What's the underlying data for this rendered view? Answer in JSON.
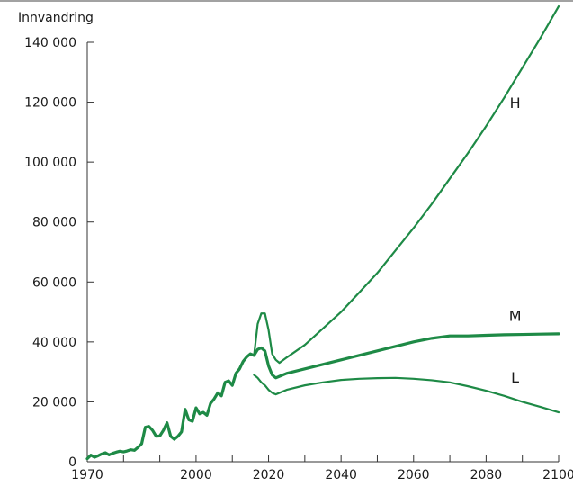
{
  "chart_data": {
    "type": "line",
    "title": "",
    "ylabel": "Innvandring",
    "xlabel": "",
    "xlim": [
      1970,
      2100
    ],
    "ylim": [
      0,
      140000
    ],
    "x_ticks": [
      1970,
      1980,
      1990,
      2000,
      2010,
      2020,
      2030,
      2040,
      2050,
      2060,
      2070,
      2080,
      2090,
      2100
    ],
    "x_tick_labels": [
      "1970",
      "2000",
      "2020",
      "2040",
      "2060",
      "2080",
      "2100"
    ],
    "x_tick_label_values": [
      1970,
      2000,
      2020,
      2040,
      2060,
      2080,
      2100
    ],
    "y_ticks": [
      0,
      20000,
      40000,
      60000,
      80000,
      100000,
      120000,
      140000
    ],
    "y_tick_labels": [
      "0",
      "20 000",
      "40 000",
      "60 000",
      "80 000",
      "100 000",
      "120 000",
      "140 000"
    ],
    "grid": false,
    "color": "#1e8a46",
    "historical": {
      "x": [
        1970,
        1971,
        1972,
        1973,
        1974,
        1975,
        1976,
        1977,
        1978,
        1979,
        1980,
        1981,
        1982,
        1983,
        1984,
        1985,
        1986,
        1987,
        1988,
        1989,
        1990,
        1991,
        1992,
        1993,
        1994,
        1995,
        1996,
        1997,
        1998,
        1999,
        2000,
        2001,
        2002,
        2003,
        2004,
        2005,
        2006,
        2007,
        2008,
        2009,
        2010,
        2011,
        2012,
        2013,
        2014,
        2015,
        2016
      ],
      "values": [
        1000,
        2200,
        1500,
        2000,
        2600,
        3000,
        2300,
        2800,
        3200,
        3500,
        3300,
        3600,
        4000,
        3800,
        4800,
        6000,
        11500,
        11800,
        10500,
        8500,
        8600,
        10500,
        13000,
        8500,
        7500,
        8500,
        10000,
        17500,
        14000,
        13500,
        18000,
        16000,
        16500,
        15500,
        19500,
        21000,
        23000,
        22000,
        26500,
        27000,
        25500,
        29500,
        31000,
        33500,
        35000,
        36000,
        35500
      ]
    },
    "series": [
      {
        "name": "H",
        "x": [
          2016,
          2017,
          2018,
          2019,
          2020,
          2021,
          2022,
          2023,
          2025,
          2030,
          2035,
          2040,
          2045,
          2050,
          2055,
          2060,
          2065,
          2070,
          2075,
          2080,
          2085,
          2090,
          2095,
          2100
        ],
        "values": [
          35500,
          46000,
          49500,
          49500,
          44000,
          36000,
          34000,
          33000,
          34800,
          39000,
          44500,
          50000,
          56500,
          63000,
          70500,
          78000,
          86000,
          94500,
          103000,
          112000,
          121500,
          131500,
          141500,
          152000
        ]
      },
      {
        "name": "M",
        "x": [
          2016,
          2017,
          2018,
          2019,
          2020,
          2021,
          2022,
          2023,
          2025,
          2030,
          2035,
          2040,
          2045,
          2050,
          2055,
          2060,
          2065,
          2070,
          2075,
          2080,
          2085,
          2090,
          2095,
          2100
        ],
        "values": [
          35500,
          37500,
          38000,
          37000,
          32000,
          29000,
          28000,
          28500,
          29500,
          31000,
          32500,
          34000,
          35500,
          37000,
          38500,
          40000,
          41200,
          42000,
          42000,
          42200,
          42400,
          42500,
          42600,
          42700
        ]
      },
      {
        "name": "L",
        "x": [
          2016,
          2017,
          2018,
          2019,
          2020,
          2021,
          2022,
          2023,
          2025,
          2030,
          2035,
          2040,
          2045,
          2050,
          2055,
          2060,
          2065,
          2070,
          2075,
          2080,
          2085,
          2090,
          2095,
          2100
        ],
        "values": [
          29000,
          28000,
          26500,
          25500,
          24000,
          23000,
          22500,
          23000,
          24000,
          25500,
          26500,
          27300,
          27700,
          27900,
          28000,
          27700,
          27200,
          26500,
          25200,
          23700,
          22000,
          20000,
          18300,
          16500
        ]
      }
    ],
    "series_labels": [
      {
        "text": "H",
        "x": 2088,
        "y": 118000
      },
      {
        "text": "M",
        "x": 2088,
        "y": 47000
      },
      {
        "text": "L",
        "x": 2088,
        "y": 26500
      }
    ]
  }
}
